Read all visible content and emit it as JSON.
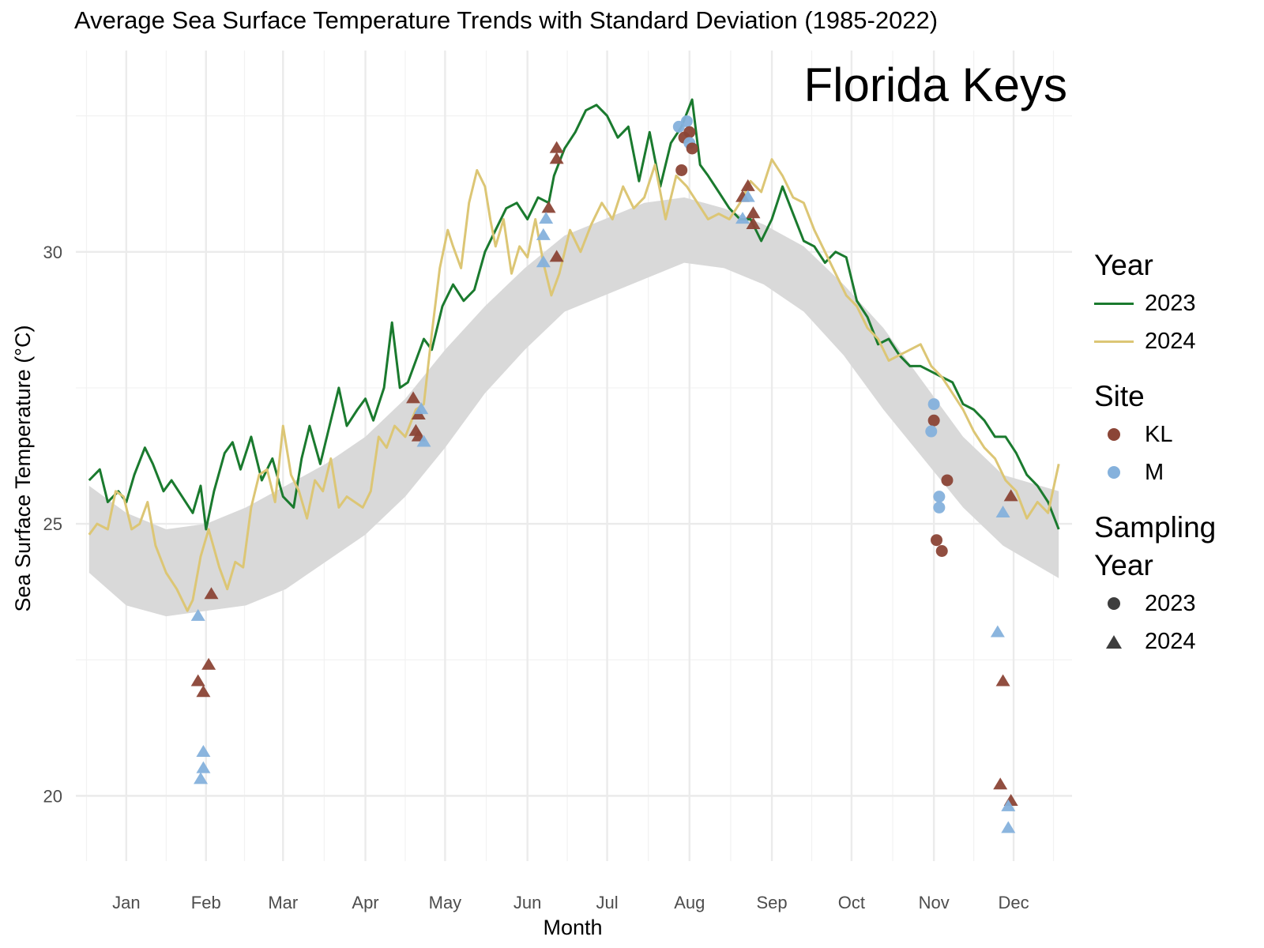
{
  "chart_data": {
    "type": "line",
    "title": "Average Sea Surface Temperature Trends with Standard Deviation (1985-2022)",
    "annotation": "Florida Keys",
    "xlabel": "Month",
    "ylabel": "Sea Surface Temperature (°C)",
    "x_unit": "day of year",
    "xlim": [
      -4,
      371
    ],
    "ylim": [
      18.8,
      33.7
    ],
    "x_ticks": [
      {
        "label": "Jan",
        "day": 15
      },
      {
        "label": "Feb",
        "day": 45
      },
      {
        "label": "Mar",
        "day": 74
      },
      {
        "label": "Apr",
        "day": 105
      },
      {
        "label": "May",
        "day": 135
      },
      {
        "label": "Jun",
        "day": 166
      },
      {
        "label": "Jul",
        "day": 196
      },
      {
        "label": "Aug",
        "day": 227
      },
      {
        "label": "Sep",
        "day": 258
      },
      {
        "label": "Oct",
        "day": 288
      },
      {
        "label": "Nov",
        "day": 319
      },
      {
        "label": "Dec",
        "day": 349
      }
    ],
    "y_ticks": [
      {
        "label": "20",
        "value": 20
      },
      {
        "label": "25",
        "value": 25
      },
      {
        "label": "30",
        "value": 30
      }
    ],
    "minor_y_ticks": [
      22.5,
      27.5,
      32.5
    ],
    "colors": {
      "2023": "#1a7a2e",
      "2024": "#dcc675",
      "ribbon": "#d9d9d9",
      "KL": "#8b4536",
      "M": "#85b1dc"
    },
    "ribbon": {
      "name": "Mean ± SD (1985-2022)",
      "x": [
        1,
        15,
        30,
        45,
        60,
        75,
        90,
        105,
        120,
        135,
        150,
        165,
        180,
        195,
        210,
        225,
        240,
        255,
        270,
        285,
        300,
        315,
        330,
        345,
        366
      ],
      "lower": [
        24.1,
        23.5,
        23.3,
        23.4,
        23.5,
        23.8,
        24.3,
        24.8,
        25.5,
        26.4,
        27.4,
        28.2,
        28.9,
        29.2,
        29.5,
        29.8,
        29.7,
        29.4,
        28.9,
        28.1,
        27.1,
        26.2,
        25.3,
        24.6,
        24.0
      ],
      "upper": [
        25.7,
        25.2,
        24.9,
        25.0,
        25.3,
        25.7,
        26.1,
        26.6,
        27.3,
        28.2,
        29.0,
        29.7,
        30.3,
        30.6,
        30.9,
        31.0,
        30.8,
        30.5,
        30.1,
        29.4,
        28.6,
        27.6,
        26.6,
        25.9,
        25.6
      ]
    },
    "series": [
      {
        "name": "2023",
        "x": [
          1,
          5,
          8,
          12,
          15,
          18,
          22,
          25,
          29,
          32,
          36,
          40,
          43,
          45,
          48,
          52,
          55,
          58,
          62,
          66,
          70,
          74,
          78,
          81,
          84,
          88,
          92,
          95,
          98,
          102,
          105,
          108,
          112,
          115,
          118,
          121,
          124,
          127,
          130,
          134,
          138,
          142,
          146,
          150,
          154,
          158,
          162,
          166,
          170,
          174,
          176,
          180,
          184,
          188,
          192,
          196,
          200,
          204,
          208,
          212,
          216,
          220,
          224,
          228,
          231,
          234,
          238,
          242,
          246,
          250,
          254,
          258,
          262,
          266,
          270,
          274,
          278,
          282,
          286,
          290,
          294,
          298,
          302,
          306,
          310,
          314,
          318,
          322,
          326,
          330,
          334,
          338,
          342,
          346,
          350,
          354,
          358,
          362,
          366
        ],
        "values": [
          25.8,
          26.0,
          25.4,
          25.6,
          25.4,
          25.9,
          26.4,
          26.1,
          25.6,
          25.8,
          25.5,
          25.2,
          25.7,
          24.9,
          25.6,
          26.3,
          26.5,
          26.0,
          26.6,
          25.8,
          26.2,
          25.5,
          25.3,
          26.2,
          26.8,
          26.1,
          26.9,
          27.5,
          26.8,
          27.1,
          27.3,
          26.9,
          27.5,
          28.7,
          27.5,
          27.6,
          28.0,
          28.4,
          28.2,
          29.0,
          29.4,
          29.1,
          29.3,
          30.0,
          30.4,
          30.8,
          30.9,
          30.6,
          31.0,
          30.9,
          31.4,
          31.9,
          32.2,
          32.6,
          32.7,
          32.5,
          32.1,
          32.3,
          31.3,
          32.2,
          31.2,
          32.0,
          32.3,
          32.8,
          31.6,
          31.4,
          31.1,
          30.8,
          30.6,
          30.6,
          30.2,
          30.6,
          31.2,
          30.7,
          30.2,
          30.1,
          29.8,
          30.0,
          29.9,
          29.1,
          28.8,
          28.3,
          28.4,
          28.1,
          27.9,
          27.9,
          27.8,
          27.7,
          27.6,
          27.2,
          27.1,
          26.9,
          26.6,
          26.6,
          26.3,
          25.9,
          25.7,
          25.4,
          24.9
        ]
      },
      {
        "name": "2024",
        "x": [
          1,
          4,
          8,
          11,
          14,
          17,
          20,
          23,
          26,
          30,
          34,
          38,
          40,
          43,
          46,
          50,
          53,
          56,
          59,
          62,
          65,
          68,
          71,
          74,
          77,
          80,
          83,
          86,
          89,
          92,
          95,
          98,
          101,
          104,
          107,
          110,
          113,
          116,
          120,
          124,
          127,
          130,
          133,
          136,
          138,
          141,
          144,
          147,
          150,
          152,
          154,
          157,
          160,
          163,
          166,
          169,
          172,
          175,
          178,
          182,
          186,
          190,
          194,
          198,
          202,
          206,
          210,
          214,
          218,
          222,
          226,
          230,
          234,
          238,
          242,
          246,
          250,
          254,
          258,
          262,
          266,
          270,
          274,
          278,
          282,
          286,
          290,
          294,
          298,
          302,
          306,
          310,
          314,
          318,
          322,
          326,
          330,
          334,
          338,
          342,
          346,
          350,
          354,
          358,
          362,
          366
        ],
        "values": [
          24.8,
          25.0,
          24.9,
          25.6,
          25.5,
          24.9,
          25.0,
          25.4,
          24.6,
          24.1,
          23.8,
          23.4,
          23.6,
          24.4,
          24.9,
          24.2,
          23.8,
          24.3,
          24.2,
          25.3,
          25.9,
          26.0,
          25.4,
          26.8,
          25.9,
          25.6,
          25.1,
          25.8,
          25.6,
          26.2,
          25.3,
          25.5,
          25.4,
          25.3,
          25.6,
          26.6,
          26.4,
          26.8,
          26.6,
          27.1,
          27.2,
          28.5,
          29.7,
          30.4,
          30.1,
          29.7,
          30.9,
          31.5,
          31.2,
          30.6,
          30.1,
          30.6,
          29.6,
          30.1,
          29.9,
          30.6,
          29.8,
          29.2,
          29.6,
          30.4,
          30.0,
          30.5,
          30.9,
          30.6,
          31.2,
          30.8,
          31.0,
          31.6,
          30.6,
          31.4,
          31.2,
          30.9,
          30.6,
          30.7,
          30.6,
          30.9,
          31.3,
          31.1,
          31.7,
          31.4,
          31.0,
          30.9,
          30.4,
          30.0,
          29.6,
          29.2,
          29.0,
          28.6,
          28.4,
          28.0,
          28.1,
          28.2,
          28.3,
          27.9,
          27.7,
          27.4,
          27.1,
          26.7,
          26.4,
          26.2,
          25.8,
          25.6,
          25.1,
          25.4,
          25.2,
          26.1
        ]
      }
    ],
    "samples": [
      {
        "day": 42,
        "value": 23.3,
        "site": "M",
        "year": "2024"
      },
      {
        "day": 42,
        "value": 22.1,
        "site": "KL",
        "year": "2024"
      },
      {
        "day": 44,
        "value": 21.9,
        "site": "KL",
        "year": "2024"
      },
      {
        "day": 46,
        "value": 22.4,
        "site": "KL",
        "year": "2024"
      },
      {
        "day": 47,
        "value": 23.7,
        "site": "KL",
        "year": "2024"
      },
      {
        "day": 44,
        "value": 20.8,
        "site": "M",
        "year": "2024"
      },
      {
        "day": 44,
        "value": 20.5,
        "site": "M",
        "year": "2024"
      },
      {
        "day": 43,
        "value": 20.3,
        "site": "M",
        "year": "2024"
      },
      {
        "day": 123,
        "value": 27.3,
        "site": "KL",
        "year": "2024"
      },
      {
        "day": 125,
        "value": 27.0,
        "site": "KL",
        "year": "2024"
      },
      {
        "day": 126,
        "value": 27.1,
        "site": "M",
        "year": "2024"
      },
      {
        "day": 124,
        "value": 26.7,
        "site": "KL",
        "year": "2024"
      },
      {
        "day": 125,
        "value": 26.6,
        "site": "KL",
        "year": "2024"
      },
      {
        "day": 127,
        "value": 26.5,
        "site": "M",
        "year": "2024"
      },
      {
        "day": 174,
        "value": 30.8,
        "site": "KL",
        "year": "2024"
      },
      {
        "day": 173,
        "value": 30.6,
        "site": "M",
        "year": "2024"
      },
      {
        "day": 172,
        "value": 30.3,
        "site": "M",
        "year": "2024"
      },
      {
        "day": 172,
        "value": 29.8,
        "site": "M",
        "year": "2024"
      },
      {
        "day": 177,
        "value": 29.9,
        "site": "KL",
        "year": "2024"
      },
      {
        "day": 177,
        "value": 31.9,
        "site": "KL",
        "year": "2024"
      },
      {
        "day": 177,
        "value": 31.7,
        "site": "KL",
        "year": "2024"
      },
      {
        "day": 223,
        "value": 32.3,
        "site": "M",
        "year": "2023"
      },
      {
        "day": 226,
        "value": 32.4,
        "site": "M",
        "year": "2023"
      },
      {
        "day": 225,
        "value": 32.1,
        "site": "KL",
        "year": "2023"
      },
      {
        "day": 227,
        "value": 32.2,
        "site": "KL",
        "year": "2023"
      },
      {
        "day": 227,
        "value": 32.0,
        "site": "M",
        "year": "2023"
      },
      {
        "day": 228,
        "value": 31.9,
        "site": "KL",
        "year": "2023"
      },
      {
        "day": 224,
        "value": 31.5,
        "site": "KL",
        "year": "2023"
      },
      {
        "day": 249,
        "value": 31.2,
        "site": "KL",
        "year": "2024"
      },
      {
        "day": 247,
        "value": 31.0,
        "site": "KL",
        "year": "2024"
      },
      {
        "day": 249,
        "value": 31.0,
        "site": "M",
        "year": "2024"
      },
      {
        "day": 247,
        "value": 30.6,
        "site": "M",
        "year": "2024"
      },
      {
        "day": 251,
        "value": 30.7,
        "site": "KL",
        "year": "2024"
      },
      {
        "day": 251,
        "value": 30.5,
        "site": "KL",
        "year": "2024"
      },
      {
        "day": 319,
        "value": 27.2,
        "site": "M",
        "year": "2023"
      },
      {
        "day": 319,
        "value": 26.9,
        "site": "KL",
        "year": "2023"
      },
      {
        "day": 318,
        "value": 26.7,
        "site": "M",
        "year": "2023"
      },
      {
        "day": 324,
        "value": 25.8,
        "site": "KL",
        "year": "2023"
      },
      {
        "day": 321,
        "value": 25.5,
        "site": "M",
        "year": "2023"
      },
      {
        "day": 321,
        "value": 25.3,
        "site": "M",
        "year": "2023"
      },
      {
        "day": 320,
        "value": 24.7,
        "site": "KL",
        "year": "2023"
      },
      {
        "day": 322,
        "value": 24.5,
        "site": "KL",
        "year": "2023"
      },
      {
        "day": 345,
        "value": 25.2,
        "site": "M",
        "year": "2024"
      },
      {
        "day": 348,
        "value": 25.5,
        "site": "KL",
        "year": "2024"
      },
      {
        "day": 343,
        "value": 23.0,
        "site": "M",
        "year": "2024"
      },
      {
        "day": 345,
        "value": 22.1,
        "site": "KL",
        "year": "2024"
      },
      {
        "day": 344,
        "value": 20.2,
        "site": "KL",
        "year": "2024"
      },
      {
        "day": 348,
        "value": 19.9,
        "site": "KL",
        "year": "2024"
      },
      {
        "day": 347,
        "value": 19.8,
        "site": "M",
        "year": "2024"
      },
      {
        "day": 347,
        "value": 19.4,
        "site": "M",
        "year": "2024"
      }
    ]
  },
  "legend": {
    "year": {
      "title": "Year",
      "items": [
        {
          "label": "2023"
        },
        {
          "label": "2024"
        }
      ]
    },
    "site": {
      "title": "Site",
      "items": [
        {
          "label": "KL"
        },
        {
          "label": "M"
        }
      ]
    },
    "sampling_year": {
      "title_line1": "Sampling",
      "title_line2": "Year",
      "items": [
        {
          "label": "2023"
        },
        {
          "label": "2024"
        }
      ]
    }
  }
}
